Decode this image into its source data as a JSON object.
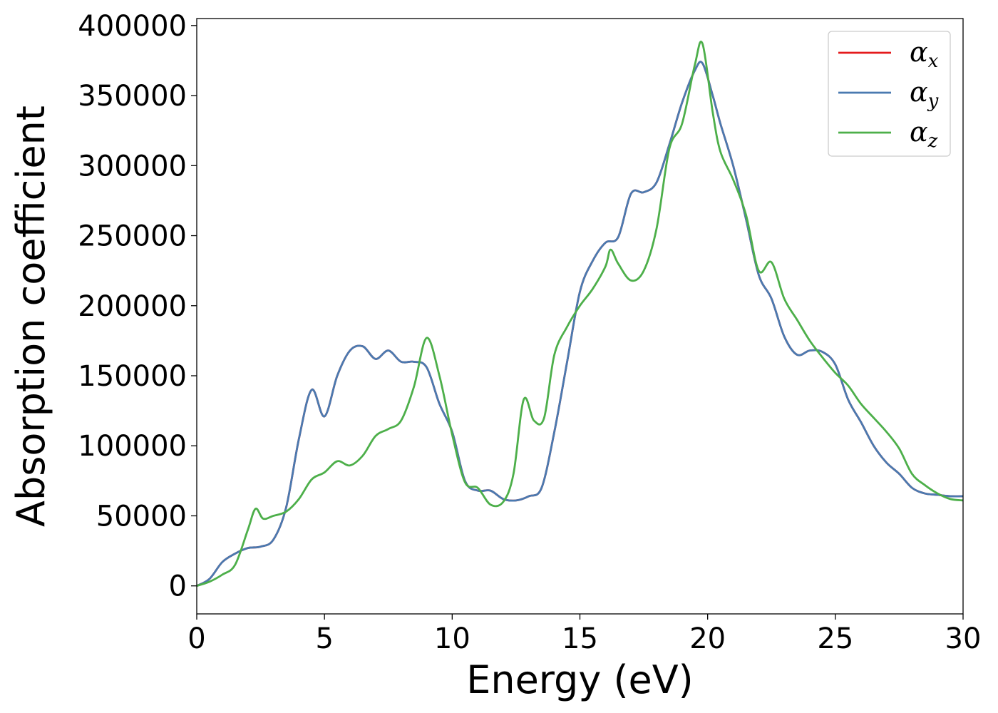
{
  "chart_data": {
    "type": "line",
    "xlabel": "Energy (eV)",
    "ylabel": "Absorption coefficient",
    "xlim": [
      0,
      30
    ],
    "ylim": [
      -20000,
      405000
    ],
    "xticks": [
      0,
      5,
      10,
      15,
      20,
      25,
      30
    ],
    "yticks": [
      0,
      50000,
      100000,
      150000,
      200000,
      250000,
      300000,
      350000,
      400000
    ],
    "grid": false,
    "legend_position": "top-right",
    "series": [
      {
        "name": "αx",
        "symbol": "α",
        "subscript": "x",
        "color": "#e41a1c",
        "x": [
          0,
          0.5,
          1,
          1.5,
          2,
          2.5,
          3,
          3.5,
          4,
          4.5,
          5,
          5.5,
          6,
          6.5,
          7,
          7.5,
          8,
          8.5,
          9,
          9.5,
          10,
          10.5,
          11,
          11.5,
          12,
          12.5,
          13,
          13.5,
          14,
          14.5,
          15,
          15.5,
          16,
          16.5,
          17,
          17.5,
          18,
          18.5,
          19,
          19.5,
          19.8,
          20.2,
          20.5,
          21,
          21.5,
          22,
          22.5,
          23,
          23.5,
          24,
          24.5,
          25,
          25.5,
          26,
          26.5,
          27,
          27.5,
          28,
          28.5,
          29,
          29.5,
          30
        ],
        "y": [
          0,
          5000,
          17000,
          23000,
          27000,
          28000,
          33000,
          56000,
          105000,
          140000,
          121000,
          150000,
          168000,
          171000,
          162000,
          168000,
          160000,
          160000,
          156000,
          130000,
          110000,
          75000,
          68000,
          68000,
          62000,
          61000,
          64000,
          70000,
          110000,
          160000,
          210000,
          232000,
          245000,
          249000,
          280000,
          281000,
          288000,
          315000,
          345000,
          368000,
          373000,
          350000,
          330000,
          300000,
          262000,
          222000,
          205000,
          178000,
          165000,
          168000,
          167000,
          158000,
          133000,
          117000,
          100000,
          88000,
          80000,
          70000,
          66000,
          65000,
          64000,
          64000
        ]
      },
      {
        "name": "αy",
        "symbol": "α",
        "subscript": "y",
        "color": "#4a7ab0",
        "x": [
          0,
          0.5,
          1,
          1.5,
          2,
          2.5,
          3,
          3.5,
          4,
          4.5,
          5,
          5.5,
          6,
          6.5,
          7,
          7.5,
          8,
          8.5,
          9,
          9.5,
          10,
          10.5,
          11,
          11.5,
          12,
          12.5,
          13,
          13.5,
          14,
          14.5,
          15,
          15.5,
          16,
          16.5,
          17,
          17.5,
          18,
          18.5,
          19,
          19.5,
          19.8,
          20.2,
          20.5,
          21,
          21.5,
          22,
          22.5,
          23,
          23.5,
          24,
          24.5,
          25,
          25.5,
          26,
          26.5,
          27,
          27.5,
          28,
          28.5,
          29,
          29.5,
          30
        ],
        "y": [
          0,
          5000,
          17000,
          23000,
          27000,
          28000,
          33000,
          56000,
          105000,
          140000,
          121000,
          150000,
          168000,
          171000,
          162000,
          168000,
          160000,
          160000,
          156000,
          130000,
          110000,
          75000,
          68000,
          68000,
          62000,
          61000,
          64000,
          70000,
          110000,
          160000,
          210000,
          232000,
          245000,
          249000,
          280000,
          281000,
          288000,
          315000,
          345000,
          368000,
          373000,
          350000,
          330000,
          300000,
          262000,
          222000,
          205000,
          178000,
          165000,
          168000,
          167000,
          158000,
          133000,
          117000,
          100000,
          88000,
          80000,
          70000,
          66000,
          65000,
          64000,
          64000
        ]
      },
      {
        "name": "αz",
        "symbol": "α",
        "subscript": "z",
        "color": "#4daf4a",
        "x": [
          0,
          0.5,
          1,
          1.5,
          2,
          2.3,
          2.6,
          3,
          3.5,
          4,
          4.5,
          5,
          5.5,
          6,
          6.5,
          7,
          7.5,
          8,
          8.5,
          9,
          9.5,
          10,
          10.5,
          11,
          11.5,
          12,
          12.4,
          12.8,
          13.2,
          13.6,
          14,
          14.5,
          15,
          15.5,
          16,
          16.2,
          16.5,
          17,
          17.5,
          18,
          18.5,
          19,
          19.5,
          19.8,
          20.2,
          20.5,
          21,
          21.5,
          22,
          22.5,
          23,
          23.5,
          24,
          24.5,
          25,
          25.5,
          26,
          26.5,
          27,
          27.5,
          28,
          28.5,
          29,
          29.5,
          30
        ],
        "y": [
          0,
          3000,
          8000,
          15000,
          40000,
          55000,
          48000,
          50000,
          53000,
          62000,
          76000,
          81000,
          89000,
          86000,
          93000,
          107000,
          112000,
          118000,
          142000,
          177000,
          150000,
          108000,
          74000,
          70000,
          58000,
          60000,
          80000,
          133000,
          118000,
          120000,
          165000,
          185000,
          200000,
          212000,
          228000,
          240000,
          230000,
          218000,
          225000,
          255000,
          312000,
          330000,
          372000,
          387000,
          338000,
          310000,
          290000,
          265000,
          225000,
          231000,
          205000,
          190000,
          175000,
          163000,
          152000,
          143000,
          130000,
          120000,
          110000,
          98000,
          80000,
          72000,
          66000,
          62000,
          61000
        ]
      }
    ]
  }
}
